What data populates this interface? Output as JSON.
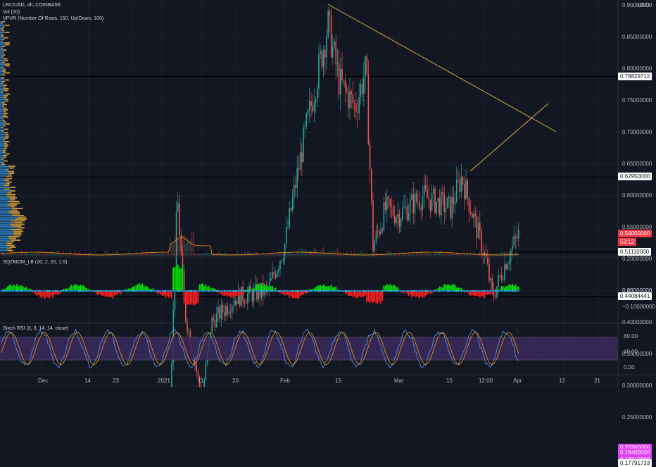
{
  "chart": {
    "symbol": "LRC/USD, 4h, COINBASE",
    "vol_label": "Vol (20)",
    "vpvr_label": "VPVR (Number Of Rows, 150, Up/Down, 100)",
    "currency": "USD"
  },
  "price_scale": {
    "ticks": [
      "0.90000000",
      "0.85000000",
      "0.80000000",
      "0.75000000",
      "0.70000000",
      "0.65000000",
      "0.60000000",
      "0.55000000",
      "0.45000000",
      "0.40000000",
      "0.35000000",
      "0.30000000",
      "0.25000000",
      "0.20000000"
    ],
    "tick_values": [
      0.9,
      0.85,
      0.8,
      0.75,
      0.7,
      0.65,
      0.6,
      0.55,
      0.45,
      0.4,
      0.35,
      0.3,
      0.25,
      0.2
    ]
  },
  "price_badges": [
    {
      "label": "0.78829712",
      "value": 0.78829712,
      "bg": "#ffffff",
      "fg": "#131722"
    },
    {
      "label": "0.62950000",
      "value": 0.6295,
      "bg": "#ffffff",
      "fg": "#131722"
    },
    {
      "label": "0.54000000",
      "value": 0.54,
      "bg": "#f23645",
      "fg": "#ffffff"
    },
    {
      "label": "53:12",
      "value": 0.527,
      "bg": "#f23645",
      "fg": "#ffffff"
    },
    {
      "label": "0.51110000",
      "value": 0.5111,
      "bg": "#ffffff",
      "fg": "#131722"
    },
    {
      "label": "0.44084441",
      "value": 0.44084441,
      "bg": "#ffffff",
      "fg": "#131722"
    },
    {
      "label": "0.20200000",
      "value": 0.202,
      "bg": "#e040fb",
      "fg": "#ffffff"
    },
    {
      "label": "0.19400000",
      "value": 0.194,
      "bg": "#e040fb",
      "fg": "#ffffff"
    },
    {
      "label": "0.18310000",
      "value": 0.1831,
      "bg": "#e040fb",
      "fg": "#ffffff"
    },
    {
      "label": "0.17791733",
      "value": 0.17791733,
      "bg": "#ffffff",
      "fg": "#131722"
    }
  ],
  "horizontal_lines": [
    0.78829712,
    0.6295,
    0.5111,
    0.44084441
  ],
  "magenta_lines": [
    0.202,
    0.194
  ],
  "squeeze": {
    "label": "SQZMOM_LB (20, 2, 20, 1.5)",
    "ticks": [
      "0.20000000",
      "0.00000000",
      "−0.10000000"
    ],
    "tick_values": [
      0.2,
      0,
      -0.1
    ]
  },
  "stoch": {
    "label": "Stoch RSI (3, 3, 14, 14, close)",
    "ticks": [
      "80.00",
      "40.00",
      "0.00"
    ],
    "tick_values": [
      80,
      40,
      0
    ],
    "band": [
      20,
      80
    ]
  },
  "time_axis": {
    "labels": [
      "Dec",
      "14",
      "23",
      "2021",
      "11",
      "20",
      "Feb",
      "15",
      "Mar",
      "15",
      "12:00",
      "Apr",
      "12",
      "21"
    ]
  },
  "colors": {
    "background": "#131722",
    "up": "#26a69a",
    "down": "#ef5350",
    "trendline": "#d8a64a",
    "vp_up": "#2f83c3",
    "vp_down": "#e0a43a",
    "sqz_up": "#00e600",
    "sqz_down": "#ff1f1f",
    "stoch_k": "#5b9cf6",
    "stoch_d": "#ff9800",
    "stoch_band": "#3b2a5c",
    "magenta": "#e040fb"
  }
}
